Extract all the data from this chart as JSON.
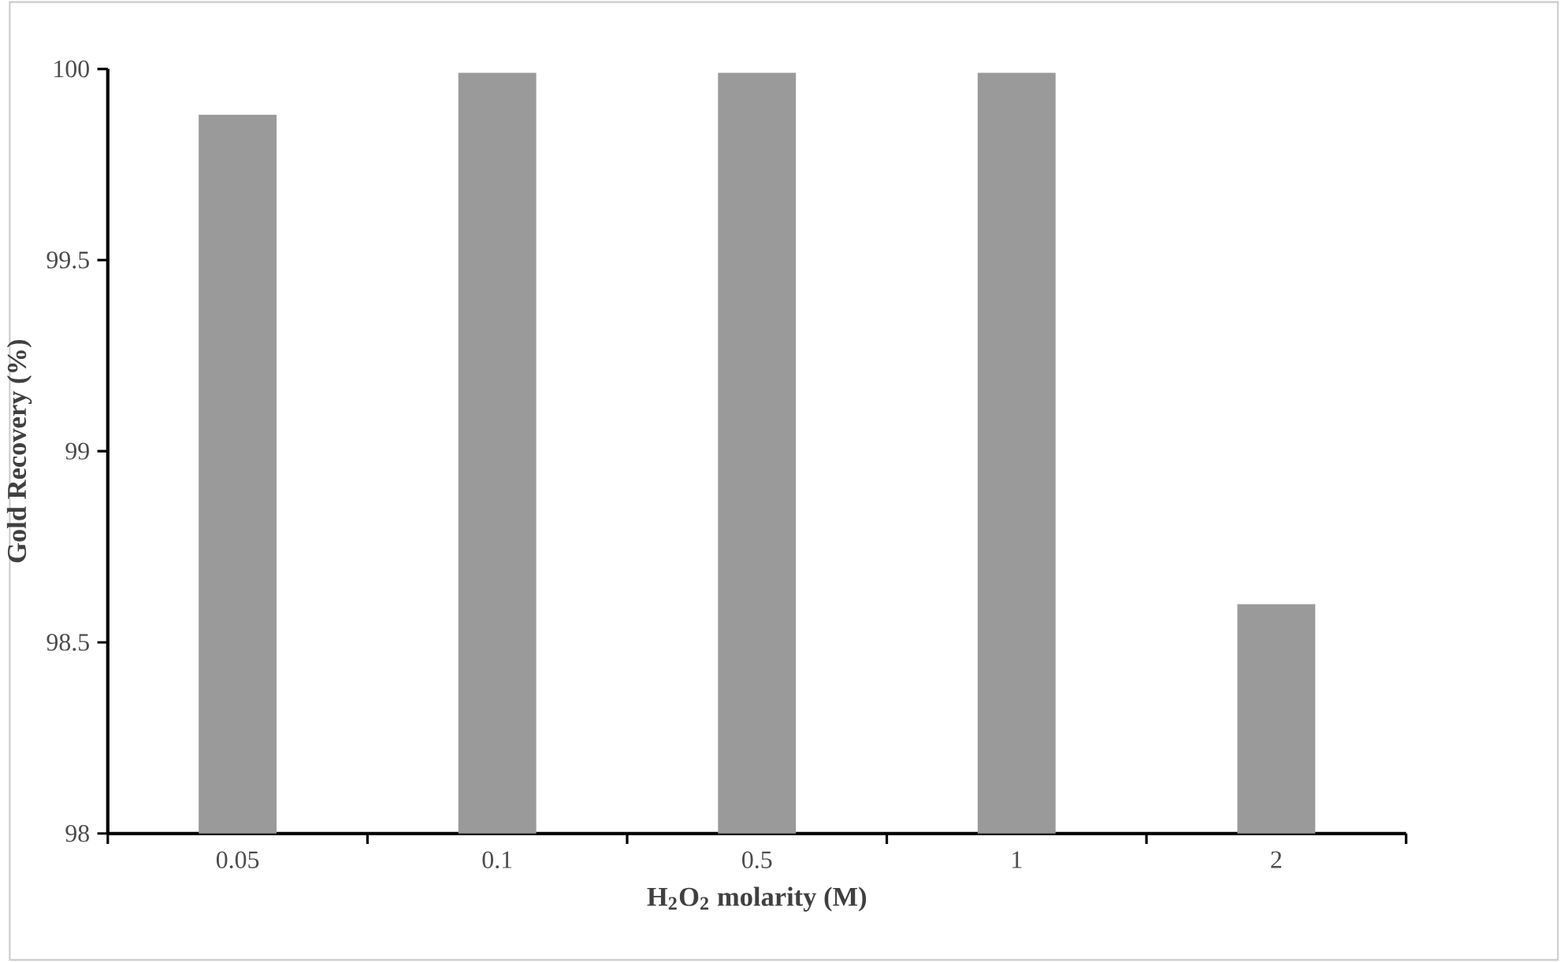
{
  "chart_data": {
    "type": "bar",
    "xlabel": "H$_{2}$O$_{2}$ molarity (M)",
    "ylabel": "Gold Recovery (%)",
    "categories": [
      "0.05",
      "0.1",
      "0.5",
      "1",
      "2"
    ],
    "values": [
      99.88,
      99.99,
      99.99,
      99.99,
      98.6
    ],
    "color": "#9a9a9a",
    "ylim": [
      98,
      100
    ],
    "yticks": [
      98,
      98.5,
      99,
      99.5,
      100
    ]
  }
}
